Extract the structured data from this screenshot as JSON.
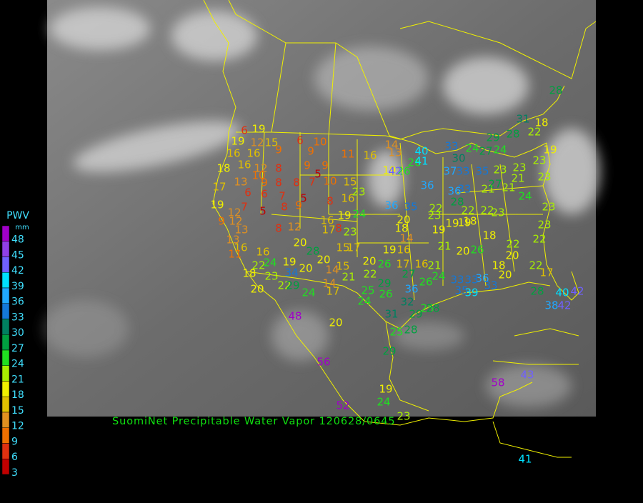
{
  "legend": {
    "title": "PWV",
    "unit": "mm",
    "levels": [
      {
        "value": 48,
        "color": "#a000c8"
      },
      {
        "value": 45,
        "color": "#9040e8"
      },
      {
        "value": 42,
        "color": "#7060ff"
      },
      {
        "value": 39,
        "color": "#00e0ff"
      },
      {
        "value": 36,
        "color": "#20a8ff"
      },
      {
        "value": 33,
        "color": "#1478d8"
      },
      {
        "value": 30,
        "color": "#008060"
      },
      {
        "value": 27,
        "color": "#00a040"
      },
      {
        "value": 24,
        "color": "#20e020"
      },
      {
        "value": 21,
        "color": "#a8f000"
      },
      {
        "value": 18,
        "color": "#f0f000"
      },
      {
        "value": 15,
        "color": "#e0c000"
      },
      {
        "value": 12,
        "color": "#e09020"
      },
      {
        "value": 9,
        "color": "#f07000"
      },
      {
        "value": 6,
        "color": "#e03010"
      },
      {
        "value": 3,
        "color": "#c00000"
      }
    ]
  },
  "caption": "SuomiNet Precipitable Water Vapor 120628/0645",
  "stations": [
    6,
    19,
    19,
    12,
    15,
    6,
    10,
    16,
    16,
    9,
    9,
    11,
    16,
    14,
    13,
    18,
    16,
    12,
    8,
    9,
    9,
    5,
    10,
    13,
    9,
    8,
    8,
    7,
    10,
    15,
    17,
    6,
    6,
    7,
    5,
    8,
    16,
    23,
    19,
    7,
    5,
    8,
    9,
    12,
    9,
    12,
    13,
    8,
    12,
    16,
    19,
    24,
    17,
    23,
    8,
    13,
    16,
    11,
    16,
    20,
    28,
    19,
    20,
    20,
    15,
    17,
    15,
    14,
    21,
    18,
    22,
    24,
    23,
    34,
    22,
    29,
    20,
    24,
    14,
    17,
    20,
    22,
    26,
    19,
    16,
    14,
    17,
    16,
    21,
    27,
    24,
    26,
    25,
    29,
    26,
    24,
    36,
    32,
    31,
    25,
    29,
    28,
    20,
    25,
    28,
    29,
    48,
    56,
    19,
    24,
    52,
    23,
    58,
    43,
    41,
    19,
    26,
    26,
    40,
    41,
    42,
    36,
    36,
    35,
    20,
    22,
    23,
    18,
    19,
    19,
    19,
    28,
    22,
    22,
    18,
    23,
    18,
    21,
    20,
    26,
    18,
    20,
    22,
    20,
    22,
    23,
    22,
    17,
    36,
    33,
    33,
    35,
    39,
    33,
    28,
    40,
    42,
    38,
    42,
    36,
    33,
    21,
    27,
    21,
    24,
    37,
    33,
    35,
    23,
    23,
    23,
    33,
    24,
    27,
    29,
    28,
    22,
    18,
    19,
    31,
    28,
    24,
    30,
    23,
    23,
    21
  ]
}
